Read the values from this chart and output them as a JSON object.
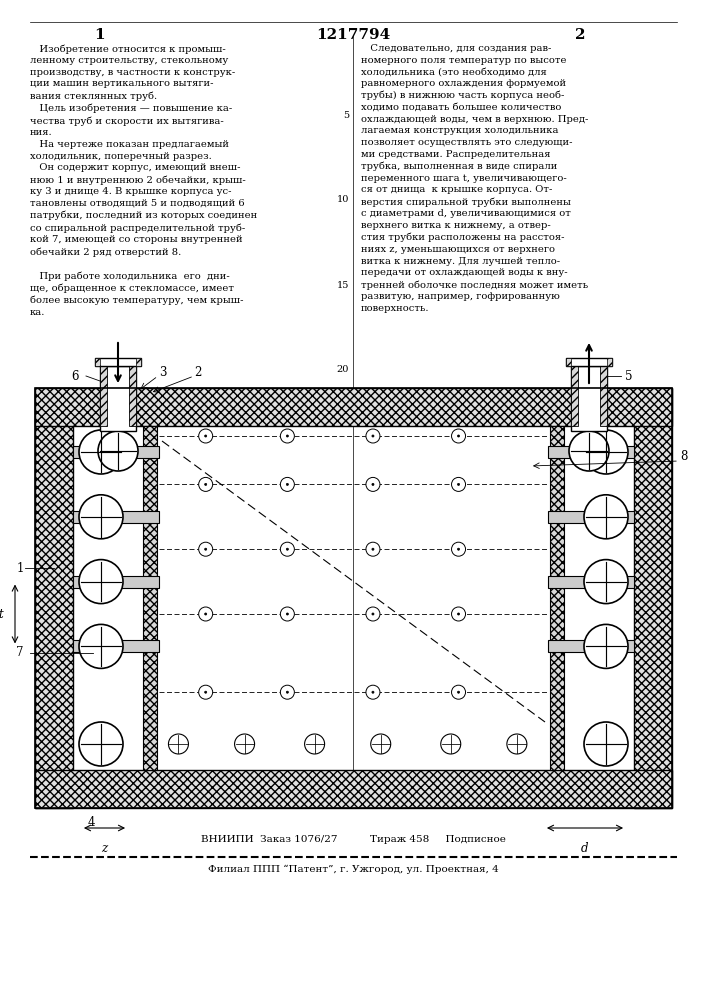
{
  "page_width": 7.07,
  "page_height": 10.0,
  "bg_color": "#ffffff",
  "patent_number": "1217794",
  "left_col_number": "1",
  "right_col_number": "2",
  "left_text": "   Изобретение относится к промыш-\nленному строительству, стекольному\nпроизводству, в частности к конструк-\nции машин вертикального вытяги-\nвания стеклянных труб.\n   Цель изобретения — повышение ка-\nчества труб и скорости их вытягива-\nния.\n   На чертеже показан предлагаемый\nхолодильник, поперечный разрез.\n   Он содержит корпус, имеющий внеш-\nнюю 1 и внутреннюю 2 обечайки, крыш-\nку 3 и днище 4. В крышке корпуса ус-\nтановлены отводящий 5 и подводящий 6\nпатрубки, последний из которых соединен\nсо спиральной распределительной труб-\nкой 7, имеющей со стороны внутренней\nобечайки 2 ряд отверстий 8.\n\n   При работе холодильника  его  дни-\nще, обращенное к стекломассе, имеет\nболее высокую температуру, чем крыш-\nка.",
  "right_text": "   Следовательно, для создания рав-\nномерного поля температур по высоте\nхолодильника (это необходимо для\nравномерного охлаждения формуемой\nтрубы) в нижнюю часть корпуса необ-\nходимо подавать большее количество\nохлаждающей воды, чем в верхнюю. Пред-\nлагаемая конструкция холодильника\nпозволяет осуществлять это следующи-\nми средствами. Распределительная\nтрубка, выполненная в виде спирали\nпеременного шага t, увеличивающего-\nся от днища  к крышке корпуса. От-\nверстия спиральной трубки выполнены\nс диаметрами d, увеличивающимися от\nверхнего витка к нижнему, а отвер-\nстия трубки расположены на расстоя-\nниях z, уменьшающихся от верхнего\nвитка к нижнему. Для лучшей тепло-\nпередачи от охлаждающей воды к вну-\nтренней оболочке последняя может иметь\nразвитую, например, гофрированную\nповерхность.",
  "footer_line1": "ВНИИПИ  Заказ 1076/27          Тираж 458     Подписное",
  "footer_line2": "Филиал ППП “Патент”, г. Ужгород, ул. Проектная, 4",
  "line_numbers": [
    "5",
    "10",
    "15",
    "20"
  ]
}
